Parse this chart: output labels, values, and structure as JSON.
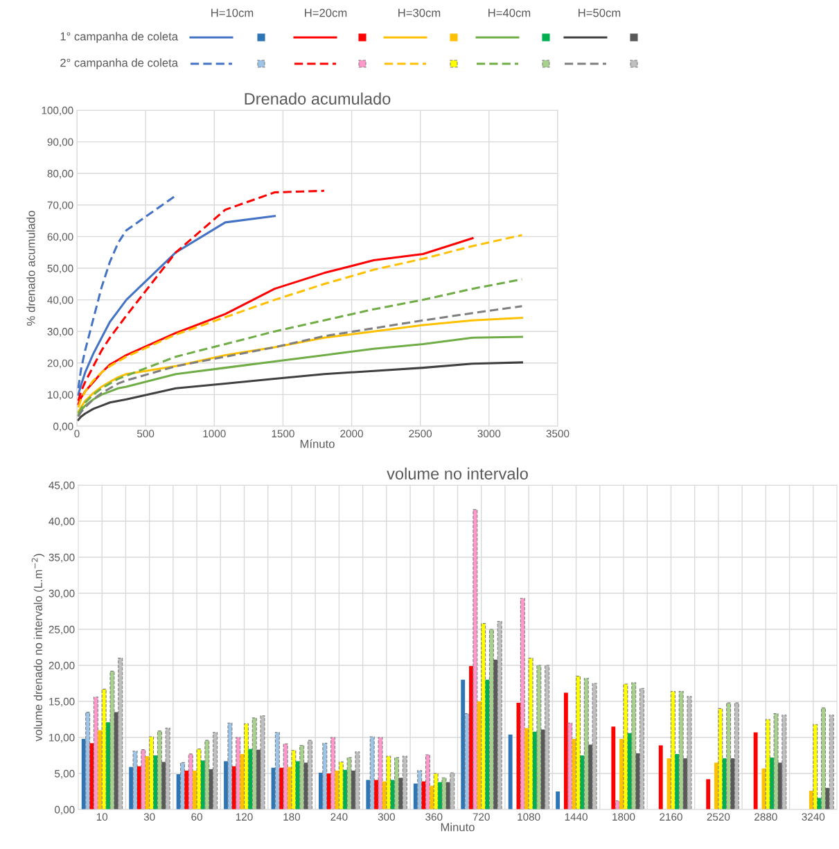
{
  "chart_data": [
    {
      "type": "line",
      "title": "Drenado acumulado",
      "xlabel": "Mínuto",
      "ylabel": "% drenado acumulado",
      "annotations": [
        "H=10cm",
        "H=20cm",
        "H=30cm",
        "H=40cm",
        "H=50cm",
        "1° campanha de coleta",
        "2° campanha de coleta"
      ],
      "x": [
        10,
        30,
        60,
        120,
        180,
        240,
        300,
        360,
        720,
        1080,
        1440,
        1800,
        2160,
        2520,
        2880,
        3240
      ],
      "xlim": [
        0,
        3500
      ],
      "xticks": [
        0,
        500,
        1000,
        1500,
        2000,
        2500,
        3000,
        3500
      ],
      "ylim": [
        0,
        100
      ],
      "yticks": [
        {
          "value": 0,
          "label": "0,00"
        },
        {
          "value": 10,
          "label": "10,00"
        },
        {
          "value": 20,
          "label": "20,00"
        },
        {
          "value": 30,
          "label": "30,00"
        },
        {
          "value": 40,
          "label": "40,00"
        },
        {
          "value": 50,
          "label": "50,00"
        },
        {
          "value": 60,
          "label": "60,00"
        },
        {
          "value": 70,
          "label": "70,00"
        },
        {
          "value": 80,
          "label": "80,00"
        },
        {
          "value": 90,
          "label": "90,00"
        },
        {
          "value": 100,
          "label": "100,00"
        }
      ],
      "grid": true,
      "marker": "none",
      "series": [
        {
          "color": "#4472c4",
          "line_style": "solid",
          "values": [
            10,
            13,
            17,
            23,
            28,
            33,
            36.5,
            40,
            55,
            64.5,
            66.5,
            null,
            null,
            null,
            null,
            null
          ]
        },
        {
          "color": "#4472c4",
          "line_style": "dashed",
          "values": [
            12,
            18,
            24,
            34,
            44,
            52,
            58,
            62,
            73,
            null,
            null,
            null,
            null,
            null,
            null,
            null
          ]
        },
        {
          "color": "#ff0000",
          "line_style": "solid",
          "values": [
            7,
            9,
            11,
            14,
            17,
            19.5,
            21,
            22.5,
            29.5,
            35.5,
            43.5,
            48.5,
            52.5,
            54.5,
            59.5,
            null
          ]
        },
        {
          "color": "#ff0000",
          "line_style": "dashed",
          "values": [
            8,
            11,
            14,
            19,
            24,
            28,
            31.5,
            35,
            55,
            68.5,
            74,
            74.5,
            null,
            null,
            null,
            null
          ]
        },
        {
          "color": "#ffc000",
          "line_style": "solid",
          "values": [
            4.5,
            6,
            8,
            10.5,
            12.5,
            14,
            15.5,
            16.5,
            19,
            22.5,
            25,
            28,
            30,
            32,
            33.5,
            34.3
          ]
        },
        {
          "color": "#ffc000",
          "line_style": "dashed",
          "values": [
            6,
            8.5,
            11,
            14.5,
            17,
            19,
            20.5,
            22,
            29,
            34.5,
            40,
            45,
            49.5,
            53,
            57,
            60.5
          ]
        },
        {
          "color": "#70ad47",
          "line_style": "solid",
          "values": [
            3.5,
            5,
            6.5,
            8.5,
            10,
            11,
            12,
            12.5,
            16.5,
            18.5,
            20.5,
            22.5,
            24.5,
            26,
            28,
            28.3
          ]
        },
        {
          "color": "#70ad47",
          "line_style": "dashed",
          "values": [
            4,
            5.5,
            7.5,
            10,
            12,
            13.5,
            15,
            16,
            22,
            26,
            30,
            33.5,
            37,
            40,
            43.5,
            46.5
          ]
        },
        {
          "color": "#404040",
          "line_style": "solid",
          "values": [
            2,
            3,
            4,
            5.5,
            6.5,
            7.5,
            8,
            8.5,
            12,
            13.5,
            15,
            16.5,
            17.5,
            18.5,
            19.8,
            20.2
          ]
        },
        {
          "color": "#7f7f7f",
          "line_style": "dashed",
          "values": [
            3,
            4.5,
            6,
            8.5,
            10.5,
            12,
            13.5,
            14.5,
            19,
            22,
            25,
            28.5,
            31,
            33.5,
            35.8,
            38
          ]
        }
      ]
    },
    {
      "type": "bar",
      "title": "volume no intervalo",
      "xlabel": "Minuto",
      "ylabel": "volume drenado no intervalo (L.m$^{−2}$)",
      "categories": [
        "10",
        "30",
        "60",
        "120",
        "180",
        "240",
        "300",
        "360",
        "720",
        "1080",
        "1440",
        "1800",
        "2160",
        "2520",
        "2880",
        "3240"
      ],
      "ylim": [
        0,
        45
      ],
      "yticks": [
        {
          "value": 0,
          "label": "0,00"
        },
        {
          "value": 5,
          "label": "5,00"
        },
        {
          "value": 10,
          "label": "10,00"
        },
        {
          "value": 15,
          "label": "15,00"
        },
        {
          "value": 20,
          "label": "20,00"
        },
        {
          "value": 25,
          "label": "25,00"
        },
        {
          "value": 30,
          "label": "30,00"
        },
        {
          "value": 35,
          "label": "35,00"
        },
        {
          "value": 40,
          "label": "40,00"
        },
        {
          "value": 45,
          "label": "45,00"
        }
      ],
      "grid": true,
      "series": [
        {
          "color": "#2e75b6",
          "line_style": "solid",
          "values": [
            9.8,
            5.9,
            4.9,
            6.7,
            5.8,
            5.1,
            4.1,
            3.6,
            18.0,
            10.4,
            2.5,
            null,
            null,
            null,
            null,
            null
          ]
        },
        {
          "color": "#9dc3e6",
          "line_style": "dashed",
          "values": [
            13.5,
            8.1,
            6.5,
            12.0,
            10.7,
            9.2,
            10.1,
            5.4,
            13.3,
            null,
            null,
            null,
            null,
            null,
            null,
            null
          ]
        },
        {
          "color": "#ff0000",
          "line_style": "solid",
          "values": [
            9.2,
            6.0,
            5.4,
            6.0,
            5.8,
            5.0,
            4.1,
            3.9,
            19.9,
            14.8,
            16.2,
            11.5,
            8.9,
            4.2,
            10.7,
            null
          ]
        },
        {
          "color": "#ff99cc",
          "line_style": "dashed",
          "values": [
            15.6,
            8.3,
            7.7,
            10.0,
            9.1,
            10.0,
            10.0,
            7.6,
            41.6,
            29.3,
            12.0,
            1.2,
            null,
            null,
            null,
            null
          ]
        },
        {
          "color": "#ffc000",
          "line_style": "solid",
          "values": [
            11.0,
            7.4,
            5.4,
            7.7,
            5.9,
            5.4,
            3.9,
            3.3,
            15.0,
            11.3,
            9.8,
            9.8,
            7.1,
            6.5,
            5.7,
            2.6
          ]
        },
        {
          "color": "#ffff00",
          "line_style": "dashed",
          "values": [
            16.7,
            10.1,
            8.4,
            11.9,
            8.2,
            6.6,
            7.4,
            5.0,
            25.8,
            21.0,
            18.5,
            17.4,
            16.4,
            14.0,
            12.5,
            11.8
          ]
        },
        {
          "color": "#00b050",
          "line_style": "solid",
          "values": [
            12.1,
            7.5,
            6.8,
            8.4,
            6.7,
            5.5,
            4.1,
            3.8,
            18.0,
            10.8,
            7.5,
            10.6,
            7.7,
            7.1,
            7.2,
            1.6
          ]
        },
        {
          "color": "#a9d18e",
          "line_style": "dashed",
          "values": [
            19.2,
            10.9,
            9.6,
            12.7,
            8.9,
            7.2,
            7.2,
            4.4,
            25.0,
            20.0,
            18.2,
            17.6,
            16.4,
            14.8,
            13.3,
            14.1
          ]
        },
        {
          "color": "#595959",
          "line_style": "solid",
          "values": [
            13.5,
            6.6,
            5.6,
            8.3,
            6.5,
            5.4,
            4.4,
            3.8,
            20.8,
            11.1,
            9.0,
            7.8,
            7.1,
            7.1,
            6.5,
            3.0
          ]
        },
        {
          "color": "#bfbfbf",
          "line_style": "dashed",
          "values": [
            21.0,
            11.3,
            10.7,
            13.0,
            9.6,
            8.0,
            7.4,
            5.1,
            26.1,
            20.0,
            17.5,
            16.8,
            15.7,
            14.8,
            13.1,
            13.1
          ]
        }
      ]
    }
  ]
}
